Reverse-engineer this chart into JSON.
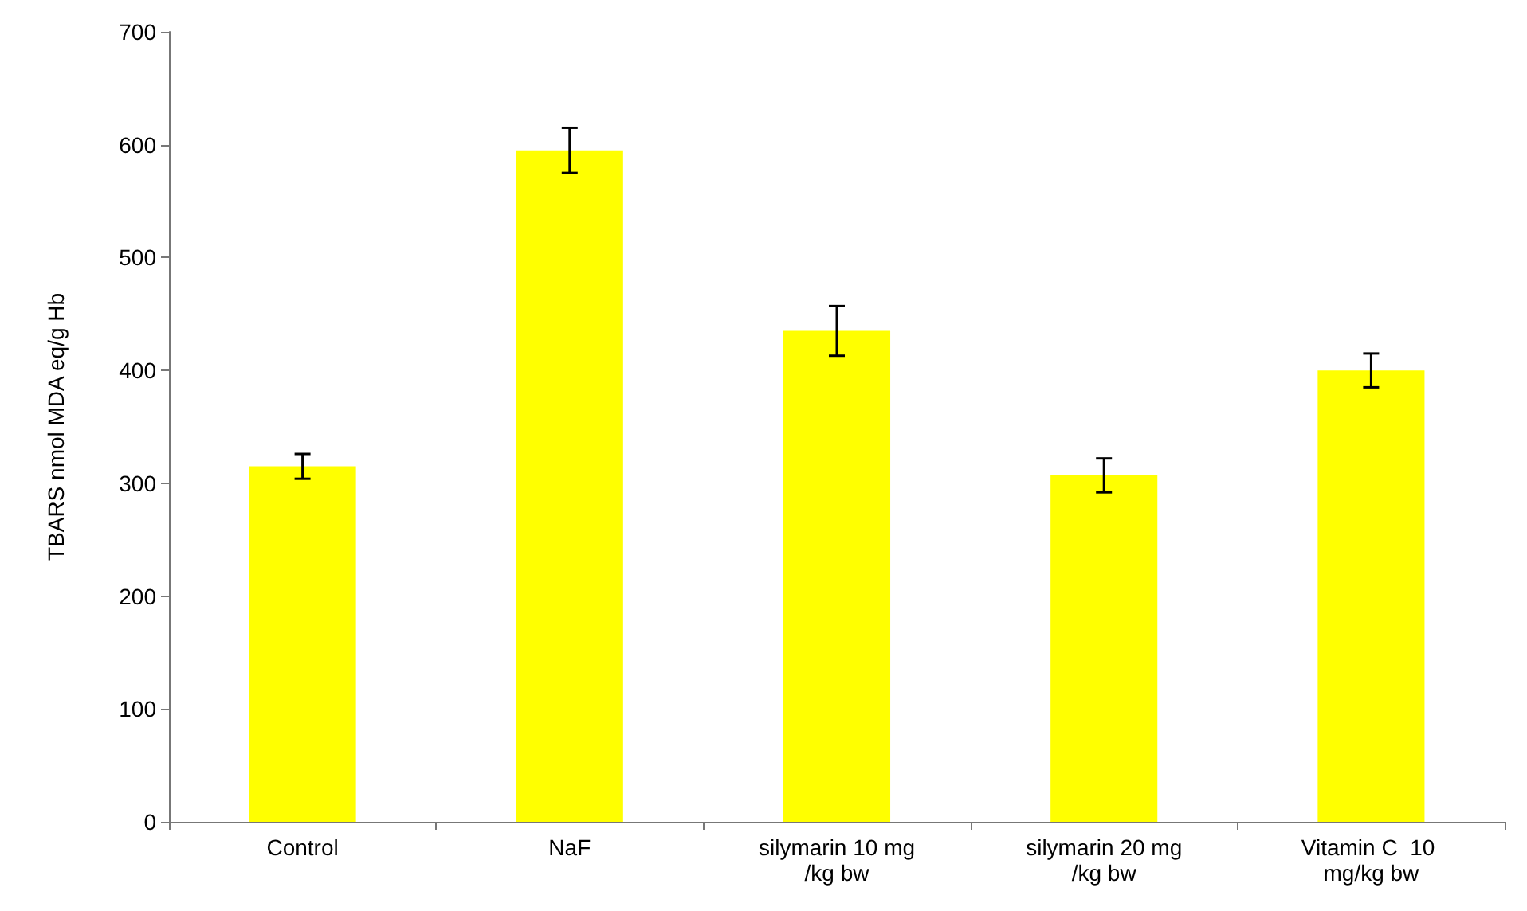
{
  "chart_data": {
    "type": "bar",
    "ylabel": "TBARS nmol MDA eq/g Hb",
    "categories": [
      "Control",
      "NaF",
      "silymarin 10 mg/kg bw",
      "silymarin 20 mg/kg bw",
      "Vitamin C  10 mg/kg bw"
    ],
    "values": [
      315,
      595,
      435,
      307,
      400
    ],
    "errors": [
      11,
      20,
      22,
      15,
      15
    ],
    "color": "#ffff00",
    "ylim": [
      0,
      700
    ],
    "yticks": [
      0,
      100,
      200,
      300,
      400,
      500,
      600,
      700
    ],
    "grid": false
  }
}
